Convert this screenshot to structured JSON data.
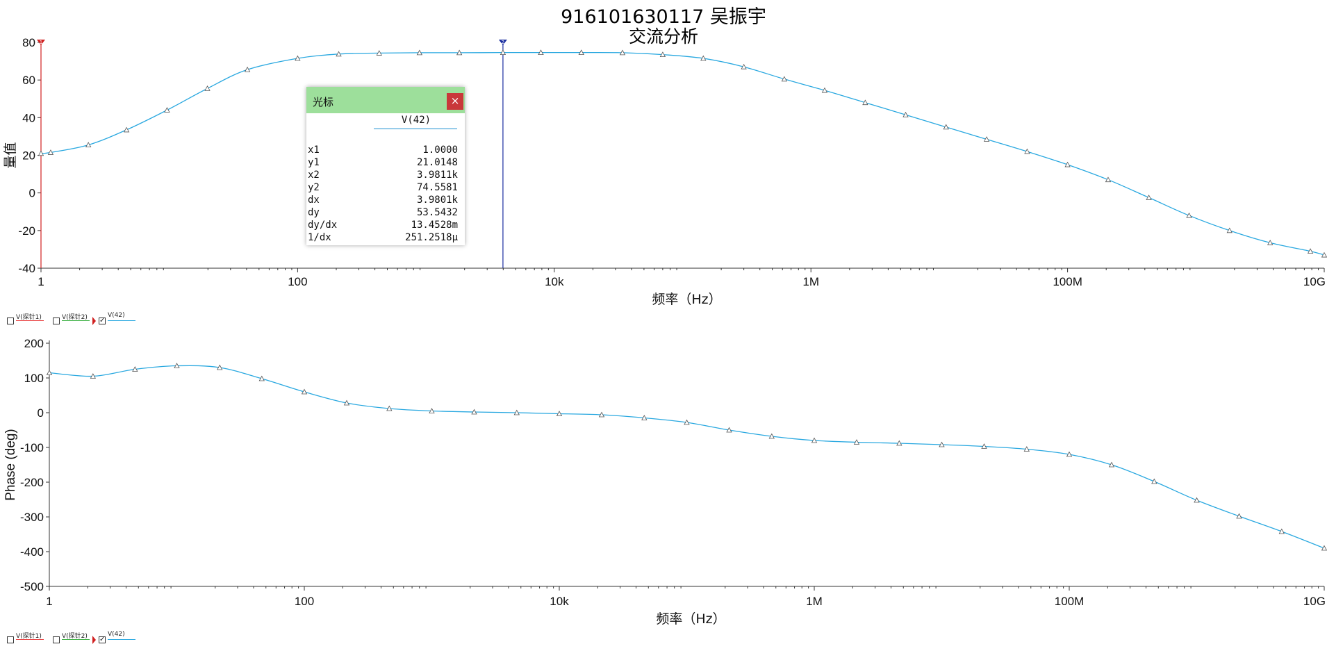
{
  "title": "916101630117 吴振宇",
  "subtitle": "交流分析",
  "legend": [
    {
      "label": "V(探针1)",
      "color": "#e84040",
      "checked": false
    },
    {
      "label": "V(探针2)",
      "color": "#3cb043",
      "checked": false
    },
    {
      "label": "V(42)",
      "color": "#29a8e0",
      "checked": true
    }
  ],
  "cursor_window": {
    "title": "光标",
    "close_glyph": "×",
    "column_header": "V(42)",
    "rows": [
      {
        "label": "x1",
        "value": "1.0000"
      },
      {
        "label": "y1",
        "value": "21.0148"
      },
      {
        "label": "x2",
        "value": "3.9811k"
      },
      {
        "label": "y2",
        "value": "74.5581"
      },
      {
        "label": "dx",
        "value": "3.9801k"
      },
      {
        "label": "dy",
        "value": "53.5432"
      },
      {
        "label": "dy/dx",
        "value": "13.4528m"
      },
      {
        "label": "1/dx",
        "value": "251.2518μ"
      }
    ]
  },
  "chart_data": [
    {
      "type": "line",
      "xlabel": "频率（Hz）",
      "ylabel": "量值",
      "xscale": "log",
      "xlim": [
        1,
        10000000000
      ],
      "ylim": [
        -40,
        80
      ],
      "xticks": [
        1,
        100,
        10000,
        1000000,
        100000000,
        10000000000
      ],
      "xtick_labels": [
        "1",
        "100",
        "10k",
        "1M",
        "100M",
        "10G"
      ],
      "yticks": [
        -40,
        -20,
        0,
        20,
        40,
        60,
        80
      ],
      "ytick_labels": [
        "-40",
        "-20",
        "0",
        "20",
        "40",
        "60",
        "80"
      ],
      "grid": false,
      "cursors": [
        {
          "name": "1",
          "x": 1,
          "color": "#d02020"
        },
        {
          "name": "2",
          "x": 3981.1,
          "color": "#1a2ea0"
        }
      ],
      "series": [
        {
          "name": "V(42)",
          "color": "#29a8e0",
          "marker": "triangle",
          "x": [
            1,
            1.19,
            2.34,
            4.64,
            9.6,
            19.8,
            40.6,
            100,
            209,
            432,
            891,
            1820,
            3981,
            7860,
            16250,
            34000,
            70000,
            145000,
            300000,
            620000,
            1280000,
            2650000,
            5470000,
            11300000,
            23400000,
            48400000,
            100000000,
            207000000,
            430000000,
            885000000,
            1830000000,
            3790000000,
            7800000000,
            10000000000
          ],
          "y": [
            21.0,
            21.5,
            25.5,
            33.5,
            44,
            55.5,
            65.5,
            71.5,
            73.8,
            74.3,
            74.5,
            74.5,
            74.6,
            74.6,
            74.6,
            74.5,
            73.5,
            71.5,
            67,
            60.5,
            54.5,
            48,
            41.5,
            35,
            28.5,
            22,
            15,
            7,
            -2.5,
            -12,
            -20,
            -26.5,
            -31,
            -33
          ]
        }
      ]
    },
    {
      "type": "line",
      "xlabel": "频率（Hz）",
      "ylabel": "Phase (deg)",
      "xscale": "log",
      "xlim": [
        1,
        10000000000
      ],
      "ylim": [
        -500,
        200
      ],
      "xticks": [
        1,
        100,
        10000,
        1000000,
        100000000,
        10000000000
      ],
      "xtick_labels": [
        "1",
        "100",
        "10k",
        "1M",
        "100M",
        "10G"
      ],
      "yticks": [
        -500,
        -400,
        -300,
        -200,
        -100,
        0,
        100,
        200
      ],
      "ytick_labels": [
        "-500",
        "-400",
        "-300",
        "-200",
        "-100",
        "0",
        "100",
        "200"
      ],
      "grid": false,
      "series": [
        {
          "name": "V(42)",
          "color": "#29a8e0",
          "marker": "triangle",
          "x": [
            1,
            2.2,
            4.7,
            10,
            21.7,
            46.4,
            100,
            215,
            464,
            1000,
            2150,
            4640,
            10000,
            21500,
            46400,
            100000,
            215000,
            464000,
            1000000,
            2150000,
            4640000,
            10000000,
            21500000,
            46400000,
            100000000,
            215000000,
            464000000,
            1000000000,
            2150000000,
            4640000000,
            10000000000
          ],
          "y": [
            115,
            105,
            125,
            135,
            130,
            98,
            60,
            28,
            12,
            5,
            2,
            0,
            -3,
            -6,
            -15,
            -28,
            -50,
            -68,
            -80,
            -85,
            -88,
            -92,
            -97,
            -105,
            -120,
            -150,
            -198,
            -252,
            -298,
            -342,
            -390
          ]
        }
      ]
    }
  ]
}
